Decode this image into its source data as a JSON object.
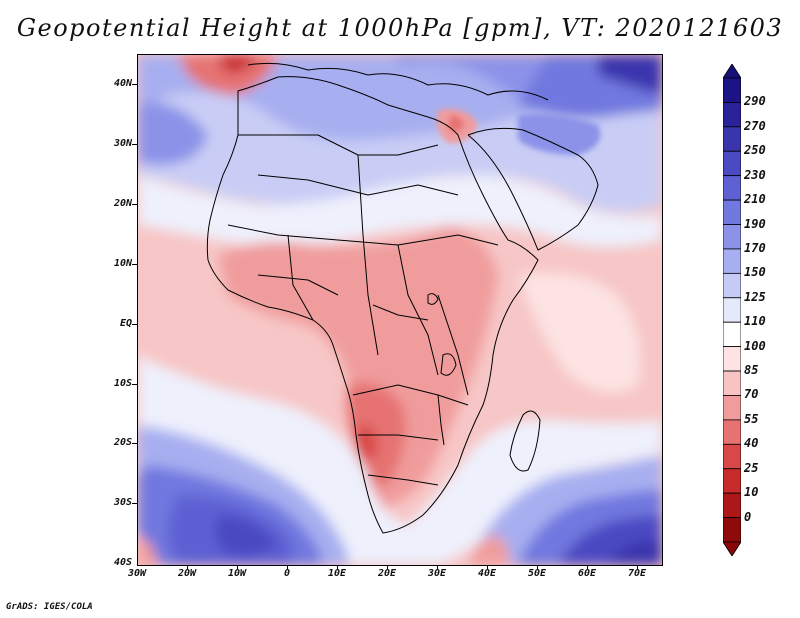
{
  "title": "Geopotential Height at 1000hPa [gpm], VT: 2020121603",
  "credit": "GrADS: IGES/COLA",
  "y_axis": {
    "labels": [
      "40N",
      "30N",
      "20N",
      "10N",
      "EQ",
      "10S",
      "20S",
      "30S",
      "40S"
    ]
  },
  "x_axis": {
    "labels": [
      "30W",
      "20W",
      "10W",
      "0",
      "10E",
      "20E",
      "30E",
      "40E",
      "50E",
      "60E",
      "70E"
    ]
  },
  "colorbar": {
    "labels": [
      "290",
      "270",
      "250",
      "230",
      "210",
      "190",
      "170",
      "150",
      "125",
      "110",
      "100",
      "85",
      "70",
      "55",
      "40",
      "25",
      "10",
      "0"
    ],
    "colors": [
      "#1c1486",
      "#2a2299",
      "#3a34ad",
      "#4b4ac2",
      "#5d61d3",
      "#7178df",
      "#8b92e8",
      "#a7aff0",
      "#c6cbf6",
      "#e6e8fb",
      "#ffffff",
      "#fde3e3",
      "#f8c3c3",
      "#f09c9c",
      "#e67272",
      "#d94747",
      "#c62a2a",
      "#ad1717",
      "#8f0b0b"
    ],
    "top_arrow_color": "#16107a",
    "bottom_arrow_color": "#8a0707"
  }
}
